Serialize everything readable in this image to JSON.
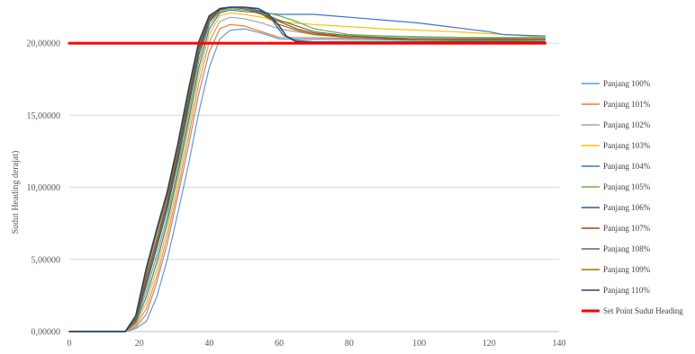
{
  "chart_data": {
    "type": "line",
    "title": "",
    "xlabel": "",
    "ylabel": "Sudut Heading derajat)",
    "xlim": [
      0,
      140
    ],
    "ylim": [
      0,
      22.5
    ],
    "x_ticks": [
      0,
      20,
      40,
      60,
      80,
      100,
      120,
      140
    ],
    "x_tick_labels": [
      "0",
      "20",
      "40",
      "60",
      "80",
      "100",
      "120",
      "140"
    ],
    "y_ticks": [
      0,
      5,
      10,
      15,
      20
    ],
    "y_tick_labels": [
      "0,00000",
      "5,00000",
      "10,00000",
      "15,00000",
      "20,00000"
    ],
    "grid": "horizontal",
    "legend_position": "right",
    "series": [
      {
        "name": "Panjang 100%",
        "color": "#5B9BD5",
        "width": 1.2,
        "x": [
          0,
          16,
          19,
          22,
          25,
          28,
          31,
          34,
          37,
          40,
          43,
          46,
          50,
          55,
          60,
          136
        ],
        "y": [
          0,
          0,
          0.2,
          0.7,
          2.4,
          5.0,
          8.2,
          11.5,
          15.2,
          18.3,
          20.3,
          20.9,
          21.0,
          20.7,
          20.3,
          20.1
        ]
      },
      {
        "name": "Panjang 101%",
        "color": "#ED7D31",
        "width": 1.2,
        "x": [
          0,
          16,
          19,
          22,
          25,
          28,
          31,
          34,
          37,
          40,
          43,
          46,
          50,
          55,
          60,
          136
        ],
        "y": [
          0,
          0,
          0.3,
          1.2,
          3.4,
          6.1,
          9.4,
          12.8,
          16.5,
          19.4,
          21.0,
          21.3,
          21.2,
          20.8,
          20.4,
          20.2
        ]
      },
      {
        "name": "Panjang 102%",
        "color": "#A5A5A5",
        "width": 1.2,
        "x": [
          0,
          16,
          19,
          22,
          25,
          28,
          31,
          34,
          37,
          40,
          43,
          46,
          50,
          55,
          60,
          70,
          136
        ],
        "y": [
          0,
          0,
          0.4,
          1.6,
          3.8,
          6.6,
          9.9,
          13.4,
          17.2,
          20.1,
          21.5,
          21.8,
          21.7,
          21.4,
          21.0,
          20.6,
          20.3
        ]
      },
      {
        "name": "Panjang 103%",
        "color": "#FFC000",
        "width": 1.2,
        "x": [
          0,
          16,
          19,
          22,
          25,
          28,
          31,
          34,
          37,
          40,
          43,
          46,
          50,
          55,
          60,
          70,
          90,
          110,
          125,
          136
        ],
        "y": [
          0,
          0,
          0.5,
          2.0,
          4.3,
          7.1,
          10.4,
          14.0,
          17.8,
          20.6,
          21.9,
          22.1,
          22.0,
          21.8,
          21.5,
          21.3,
          21.0,
          20.8,
          20.6,
          20.4
        ]
      },
      {
        "name": "Panjang 104%",
        "color": "#4472C4",
        "width": 1.2,
        "x": [
          0,
          16,
          19,
          22,
          25,
          28,
          31,
          34,
          37,
          40,
          43,
          46,
          50,
          55,
          60,
          70,
          80,
          90,
          100,
          110,
          120,
          124,
          136
        ],
        "y": [
          0,
          0,
          0.6,
          2.4,
          4.8,
          7.6,
          10.9,
          14.5,
          18.3,
          21.0,
          22.1,
          22.3,
          22.2,
          22.1,
          22.0,
          22.0,
          21.8,
          21.6,
          21.4,
          21.1,
          20.8,
          20.6,
          20.5
        ]
      },
      {
        "name": "Panjang 105%",
        "color": "#70AD47",
        "width": 1.2,
        "x": [
          0,
          16,
          19,
          22,
          25,
          28,
          31,
          34,
          37,
          40,
          43,
          46,
          50,
          55,
          60,
          65,
          70,
          80,
          100,
          136
        ],
        "y": [
          0,
          0,
          0.7,
          2.8,
          5.3,
          8.0,
          11.3,
          15.0,
          18.8,
          21.3,
          22.2,
          22.4,
          22.3,
          22.2,
          21.9,
          21.5,
          21.0,
          20.6,
          20.4,
          20.4
        ]
      },
      {
        "name": "Panjang 106%",
        "color": "#255E91",
        "width": 1.2,
        "x": [
          0,
          16,
          19,
          22,
          25,
          28,
          31,
          34,
          37,
          40,
          43,
          46,
          50,
          55,
          58,
          61,
          64,
          70,
          136
        ],
        "y": [
          0,
          0,
          0.8,
          3.2,
          5.8,
          8.5,
          11.8,
          15.5,
          19.2,
          21.5,
          22.3,
          22.5,
          22.5,
          22.2,
          21.6,
          20.6,
          20.2,
          20.1,
          20.1
        ]
      },
      {
        "name": "Panjang 107%",
        "color": "#9E480E",
        "width": 1.2,
        "x": [
          0,
          16,
          19,
          22,
          25,
          28,
          31,
          34,
          37,
          40,
          43,
          46,
          50,
          55,
          60,
          65,
          70,
          80,
          100,
          136
        ],
        "y": [
          0,
          0,
          0.8,
          3.5,
          6.1,
          8.8,
          12.1,
          15.8,
          19.5,
          21.6,
          22.3,
          22.5,
          22.4,
          22.0,
          21.5,
          21.0,
          20.7,
          20.4,
          20.3,
          20.3
        ]
      },
      {
        "name": "Panjang 108%",
        "color": "#636363",
        "width": 1.2,
        "x": [
          0,
          16,
          19,
          22,
          25,
          28,
          31,
          34,
          37,
          40,
          43,
          46,
          50,
          55,
          60,
          65,
          70,
          80,
          100,
          136
        ],
        "y": [
          0,
          0,
          0.9,
          3.8,
          6.4,
          9.1,
          12.4,
          16.1,
          19.7,
          21.7,
          22.4,
          22.5,
          22.4,
          22.1,
          21.6,
          21.2,
          20.8,
          20.5,
          20.3,
          20.3
        ]
      },
      {
        "name": "Panjang 109%",
        "color": "#997300",
        "width": 1.2,
        "x": [
          0,
          16,
          19,
          22,
          25,
          28,
          31,
          34,
          37,
          40,
          43,
          46,
          50,
          55,
          60,
          65,
          70,
          80,
          100,
          136
        ],
        "y": [
          0,
          0,
          1.0,
          4.1,
          6.8,
          9.4,
          12.7,
          16.4,
          19.9,
          21.8,
          22.4,
          22.5,
          22.4,
          22.0,
          21.3,
          20.9,
          20.6,
          20.4,
          20.2,
          20.2
        ]
      },
      {
        "name": "Panjang 110%",
        "color": "#264478",
        "width": 1.6,
        "x": [
          0,
          16,
          19,
          22,
          25,
          28,
          31,
          34,
          37,
          40,
          43,
          46,
          50,
          54,
          57,
          60,
          62,
          65,
          70,
          136
        ],
        "y": [
          0,
          0,
          1.1,
          4.4,
          7.1,
          9.7,
          13.0,
          16.7,
          20.1,
          21.9,
          22.4,
          22.5,
          22.5,
          22.4,
          22.0,
          21.2,
          20.5,
          20.1,
          20.0,
          20.0
        ]
      },
      {
        "name": "Set Point Sudut Heading",
        "color": "#FF0000",
        "width": 3,
        "x": [
          0,
          136
        ],
        "y": [
          20,
          20
        ]
      }
    ]
  }
}
